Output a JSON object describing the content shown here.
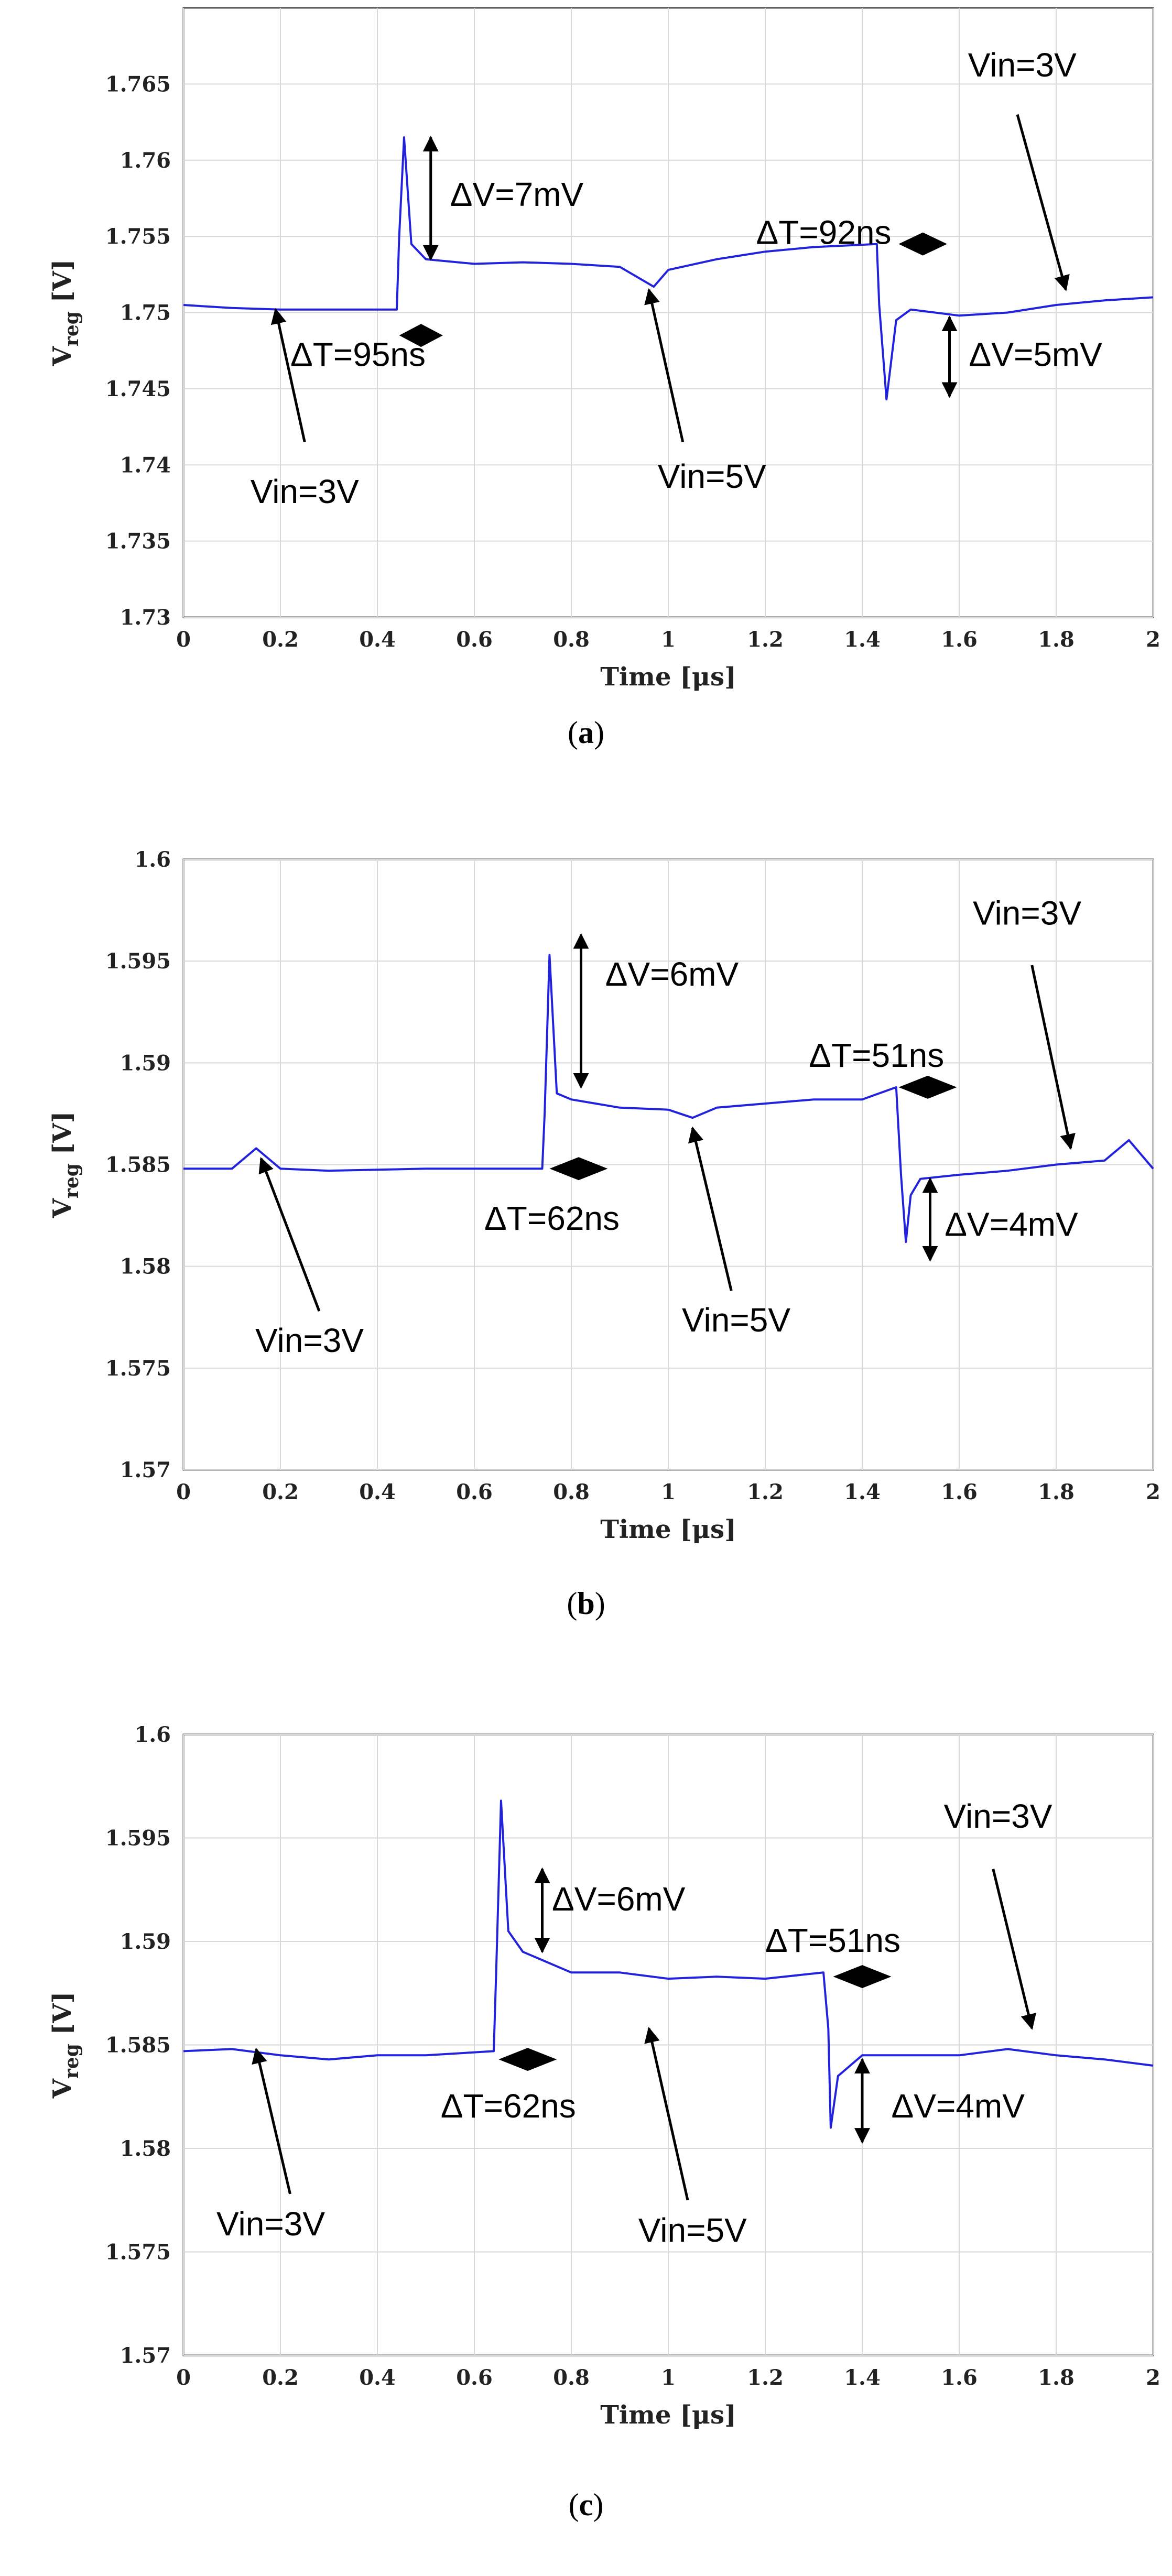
{
  "chart_data": [
    {
      "type": "line",
      "caption": "(a)",
      "xlabel": "Time [μs]",
      "ylabel": "V_reg [V]",
      "xlim": [
        0,
        2
      ],
      "ylim": [
        1.73,
        1.77
      ],
      "xticks": [
        "0",
        "0.2",
        "0.4",
        "0.6",
        "0.8",
        "1",
        "1.2",
        "1.4",
        "1.6",
        "1.8",
        "2"
      ],
      "yticks": [
        "1.73",
        "1.735",
        "1.74",
        "1.745",
        "1.75",
        "1.755",
        "1.76",
        "1.765"
      ],
      "grid": true,
      "line_color": "#2222dd",
      "series": [
        {
          "x": [
            0,
            0.1,
            0.2,
            0.3,
            0.44,
            0.445,
            0.455,
            0.47,
            0.5,
            0.6,
            0.7,
            0.8,
            0.9,
            0.97,
            1.0,
            1.1,
            1.2,
            1.3,
            1.43,
            1.435,
            1.45,
            1.47,
            1.5,
            1.6,
            1.7,
            1.8,
            1.9,
            2.0
          ],
          "y": [
            1.7505,
            1.7503,
            1.7502,
            1.7502,
            1.7502,
            1.755,
            1.7615,
            1.7545,
            1.7535,
            1.7532,
            1.7533,
            1.7532,
            1.753,
            1.7517,
            1.7528,
            1.7535,
            1.754,
            1.7543,
            1.7545,
            1.7505,
            1.7443,
            1.7495,
            1.7502,
            1.7498,
            1.75,
            1.7505,
            1.7508,
            1.751
          ]
        }
      ],
      "annotations": [
        {
          "text": "ΔV=7mV"
        },
        {
          "text": "ΔT=95ns"
        },
        {
          "text": "Vin=3V"
        },
        {
          "text": "Vin=5V"
        },
        {
          "text": "ΔT=92ns"
        },
        {
          "text": "Vin=3V"
        },
        {
          "text": "ΔV=5mV"
        }
      ]
    },
    {
      "type": "line",
      "caption": "(b)",
      "xlabel": "Time [μs]",
      "ylabel": "V_reg [V]",
      "xlim": [
        0,
        2
      ],
      "ylim": [
        1.57,
        1.6
      ],
      "xticks": [
        "0",
        "0.2",
        "0.4",
        "0.6",
        "0.8",
        "1",
        "1.2",
        "1.4",
        "1.6",
        "1.8",
        "2"
      ],
      "yticks": [
        "1.57",
        "1.575",
        "1.58",
        "1.585",
        "1.59",
        "1.595",
        "1.6"
      ],
      "grid": true,
      "line_color": "#2222dd",
      "series": [
        {
          "x": [
            0,
            0.1,
            0.15,
            0.2,
            0.3,
            0.5,
            0.74,
            0.745,
            0.755,
            0.77,
            0.8,
            0.9,
            1.0,
            1.05,
            1.1,
            1.2,
            1.3,
            1.4,
            1.47,
            1.48,
            1.49,
            1.5,
            1.52,
            1.6,
            1.7,
            1.8,
            1.9,
            1.95,
            2.0
          ],
          "y": [
            1.5848,
            1.5848,
            1.5858,
            1.5848,
            1.5847,
            1.5848,
            1.5848,
            1.5875,
            1.5953,
            1.5885,
            1.5882,
            1.5878,
            1.5877,
            1.5873,
            1.5878,
            1.588,
            1.5882,
            1.5882,
            1.5888,
            1.5845,
            1.5812,
            1.5835,
            1.5843,
            1.5845,
            1.5847,
            1.585,
            1.5852,
            1.5862,
            1.5848
          ]
        }
      ],
      "annotations": [
        {
          "text": "ΔV=6mV"
        },
        {
          "text": "ΔT=62ns"
        },
        {
          "text": "Vin=3V"
        },
        {
          "text": "Vin=5V"
        },
        {
          "text": "ΔT=51ns"
        },
        {
          "text": "Vin=3V"
        },
        {
          "text": "ΔV=4mV"
        }
      ]
    },
    {
      "type": "line",
      "caption": "(c)",
      "xlabel": "Time [μs]",
      "ylabel": "V_reg [V]",
      "xlim": [
        0,
        2
      ],
      "ylim": [
        1.57,
        1.6
      ],
      "xticks": [
        "0",
        "0.2",
        "0.4",
        "0.6",
        "0.8",
        "1",
        "1.2",
        "1.4",
        "1.6",
        "1.8",
        "2"
      ],
      "yticks": [
        "1.57",
        "1.575",
        "1.58",
        "1.585",
        "1.59",
        "1.595",
        "1.6"
      ],
      "grid": true,
      "line_color": "#2222dd",
      "series": [
        {
          "x": [
            0,
            0.1,
            0.2,
            0.3,
            0.4,
            0.5,
            0.64,
            0.645,
            0.655,
            0.67,
            0.7,
            0.8,
            0.9,
            1.0,
            1.1,
            1.2,
            1.32,
            1.33,
            1.335,
            1.35,
            1.4,
            1.5,
            1.6,
            1.7,
            1.8,
            1.9,
            2.0
          ],
          "y": [
            1.5847,
            1.5848,
            1.5845,
            1.5843,
            1.5845,
            1.5845,
            1.5847,
            1.5885,
            1.5968,
            1.5905,
            1.5895,
            1.5885,
            1.5885,
            1.5882,
            1.5883,
            1.5882,
            1.5885,
            1.5858,
            1.581,
            1.5835,
            1.5845,
            1.5845,
            1.5845,
            1.5848,
            1.5845,
            1.5843,
            1.584
          ]
        }
      ],
      "annotations": [
        {
          "text": "ΔV=6mV"
        },
        {
          "text": "ΔT=62ns"
        },
        {
          "text": "Vin=3V"
        },
        {
          "text": "Vin=5V"
        },
        {
          "text": "ΔT=51ns"
        },
        {
          "text": "Vin=3V"
        },
        {
          "text": "ΔV=4mV"
        }
      ]
    }
  ]
}
